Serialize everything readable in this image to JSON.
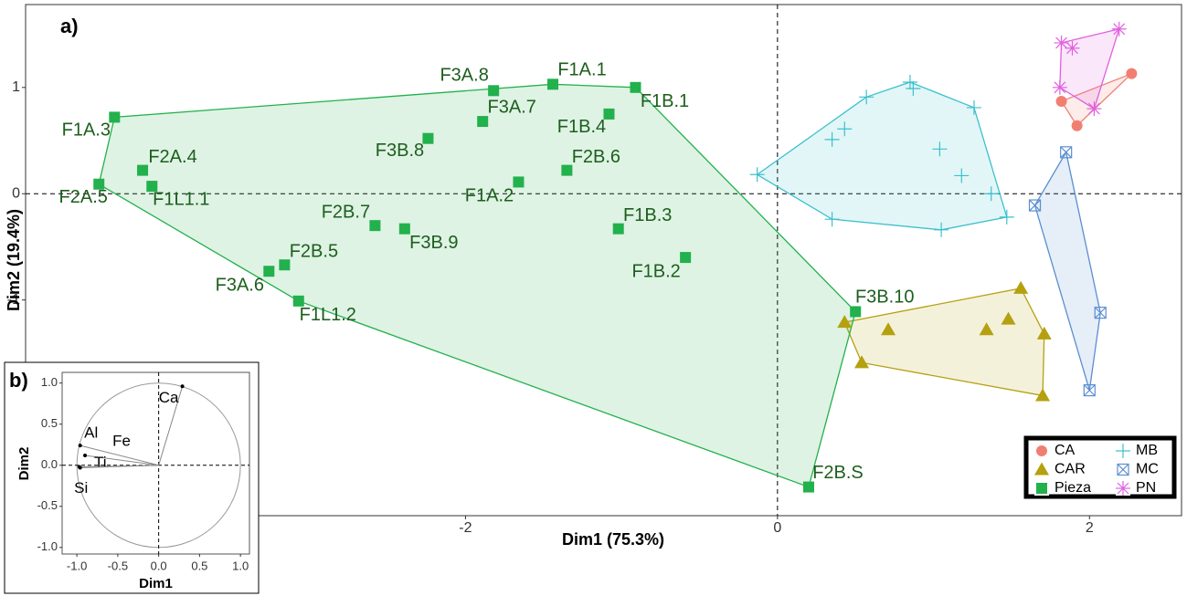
{
  "chart_data": [
    {
      "type": "scatter",
      "panel_label": "a)",
      "x_label": "Dim1 (75.3%)",
      "y_label": "Dim2 (19.4%)",
      "xlim": [
        -4.82,
        2.59
      ],
      "ylim": [
        -3.03,
        1.78
      ],
      "xticks": [
        -2,
        0,
        2
      ],
      "yticks": [
        -1,
        0,
        1
      ],
      "zero_lines": true,
      "hulls": true,
      "legend": "bottom-right",
      "series": [
        {
          "name": "CA",
          "color": "#f07f72",
          "marker": "circle",
          "x": [
            1.82,
            1.92,
            2.27
          ],
          "values": [
            0.87,
            0.64,
            1.13
          ]
        },
        {
          "name": "CAR",
          "color": "#b5a010",
          "marker": "triangle",
          "x": [
            0.43,
            0.54,
            0.71,
            1.34,
            1.48,
            1.56,
            1.71,
            1.7
          ],
          "values": [
            -1.21,
            -1.59,
            -1.28,
            -1.28,
            -1.18,
            -0.89,
            -1.32,
            -1.9
          ]
        },
        {
          "name": "Pieza",
          "color": "#22b14c",
          "marker": "square",
          "x": [
            -4.25,
            -4.35,
            -4.07,
            -4.01,
            -1.82,
            -1.44,
            -0.91,
            -1.89,
            -1.08,
            -2.24,
            -1.35,
            -1.66,
            -2.58,
            -2.39,
            -1.02,
            -0.59,
            -3.16,
            -3.26,
            -3.07,
            0.5,
            0.2
          ],
          "values": [
            0.72,
            0.09,
            0.22,
            0.07,
            0.97,
            1.03,
            1.0,
            0.68,
            0.75,
            0.52,
            0.22,
            0.11,
            -0.3,
            -0.33,
            -0.33,
            -0.6,
            -0.67,
            -0.73,
            -1.01,
            -1.11,
            -2.76
          ],
          "labels": [
            "F1A.3",
            "F2A.5",
            "F2A.4",
            "F1L1.1",
            "F3A.8",
            "F1A.1",
            "F1B.1",
            "F3A.7",
            "F1B.4",
            "F3B.8",
            "F2B.6",
            "F1A.2",
            "F2B.7",
            "F3B.9",
            "F1B.3",
            "F1B.2",
            "F2B.5",
            "F3A.6",
            "F1L1.2",
            "F3B.10",
            "F2B.S"
          ]
        },
        {
          "name": "MB",
          "color": "#3cc0cc",
          "marker": "plus",
          "x": [
            -0.13,
            0.35,
            0.43,
            0.57,
            0.85,
            0.87,
            1.26,
            1.04,
            1.18,
            1.37,
            1.47,
            1.05,
            0.35
          ],
          "values": [
            0.18,
            0.51,
            0.61,
            0.91,
            1.05,
            0.99,
            0.81,
            0.42,
            0.17,
            0.0,
            -0.22,
            -0.34,
            -0.24
          ]
        },
        {
          "name": "MC",
          "color": "#5a8fd0",
          "marker": "boxx",
          "x": [
            1.85,
            1.65,
            2.07,
            2.0
          ],
          "values": [
            0.39,
            -0.11,
            -1.12,
            -1.85
          ]
        },
        {
          "name": "PN",
          "color": "#e060e0",
          "marker": "asterisk",
          "x": [
            2.19,
            1.89,
            1.82,
            1.81,
            2.03
          ],
          "values": [
            1.55,
            1.37,
            1.42,
            1.0,
            0.8
          ]
        }
      ]
    },
    {
      "type": "biplot",
      "panel_label": "b)",
      "x_label": "Dim1",
      "y_label": "Dim2",
      "xlim": [
        -1.18,
        1.11
      ],
      "ylim": [
        -1.08,
        1.13
      ],
      "xticks": [
        {
          "value": -1,
          "label": "-1.0"
        },
        -0.5,
        {
          "value": 0,
          "label": "0.0"
        },
        0.5,
        {
          "value": 1,
          "label": "1.0"
        }
      ],
      "yticks": [
        {
          "value": -1,
          "label": "-1.0"
        },
        -0.5,
        {
          "value": 0,
          "label": "0.0"
        },
        0.5,
        {
          "value": 1,
          "label": "1.0"
        }
      ],
      "zero_lines": true,
      "circle": true,
      "variables": {
        "names": [
          "Ca",
          "Al",
          "Fe",
          "Ti",
          "Si"
        ],
        "x": [
          0.29,
          -0.96,
          -0.9,
          -0.97,
          -0.96
        ],
        "values": [
          0.96,
          0.24,
          0.12,
          -0.02,
          -0.03
        ]
      }
    }
  ]
}
